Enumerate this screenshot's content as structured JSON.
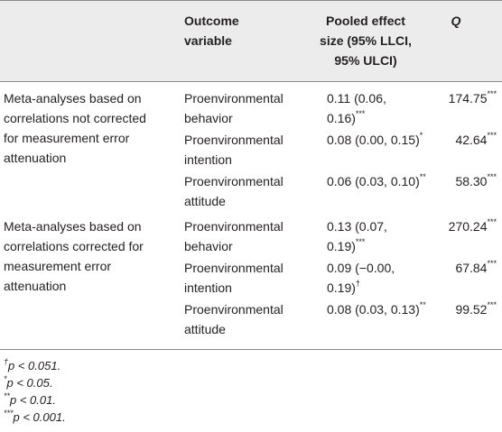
{
  "headers": {
    "outcome_line1": "Outcome",
    "outcome_line2": "variable",
    "effect_line1": "Pooled effect",
    "effect_line2": "size (95% LLCI,",
    "effect_line3": "95% ULCI)",
    "q": "Q"
  },
  "groups": [
    {
      "label_lines": [
        "Meta-analyses based on",
        "correlations not corrected",
        "for measurement error",
        "attenuation"
      ],
      "rows": [
        {
          "outcome": [
            "Proenvironmental",
            "behavior"
          ],
          "effect": [
            "0.11 (0.06,",
            "0.16)"
          ],
          "effect_sig": "***",
          "q": "174.75",
          "q_sig": "***"
        },
        {
          "outcome": [
            "Proenvironmental",
            "intention"
          ],
          "effect": [
            "0.08 (0.00, 0.15)"
          ],
          "effect_sig": "*",
          "q": "42.64",
          "q_sig": "***"
        },
        {
          "outcome": [
            "Proenvironmental",
            "attitude"
          ],
          "effect": [
            "0.06 (0.03, 0.10)"
          ],
          "effect_sig": "**",
          "q": "58.30",
          "q_sig": "***"
        }
      ]
    },
    {
      "label_lines": [
        "Meta-analyses based on",
        "correlations corrected for",
        "measurement error",
        "attenuation"
      ],
      "rows": [
        {
          "outcome": [
            "Proenvironmental",
            "behavior"
          ],
          "effect": [
            "0.13 (0.07,",
            "0.19)"
          ],
          "effect_sig": "***",
          "q": "270.24",
          "q_sig": "***"
        },
        {
          "outcome": [
            "Proenvironmental",
            "intention"
          ],
          "effect": [
            "0.09 (−0.00,",
            "0.19)"
          ],
          "effect_sig": "†",
          "q": "67.84",
          "q_sig": "***"
        },
        {
          "outcome": [
            "Proenvironmental",
            "attitude"
          ],
          "effect": [
            "0.08 (0.03, 0.13)"
          ],
          "effect_sig": "**",
          "q": "99.52",
          "q_sig": "***"
        }
      ]
    }
  ],
  "notes": [
    {
      "sym": "†",
      "text": "p < 0.051."
    },
    {
      "sym": "*",
      "text": "p < 0.05."
    },
    {
      "sym": "**",
      "text": "p < 0.01."
    },
    {
      "sym": "***",
      "text": "p < 0.001."
    }
  ]
}
